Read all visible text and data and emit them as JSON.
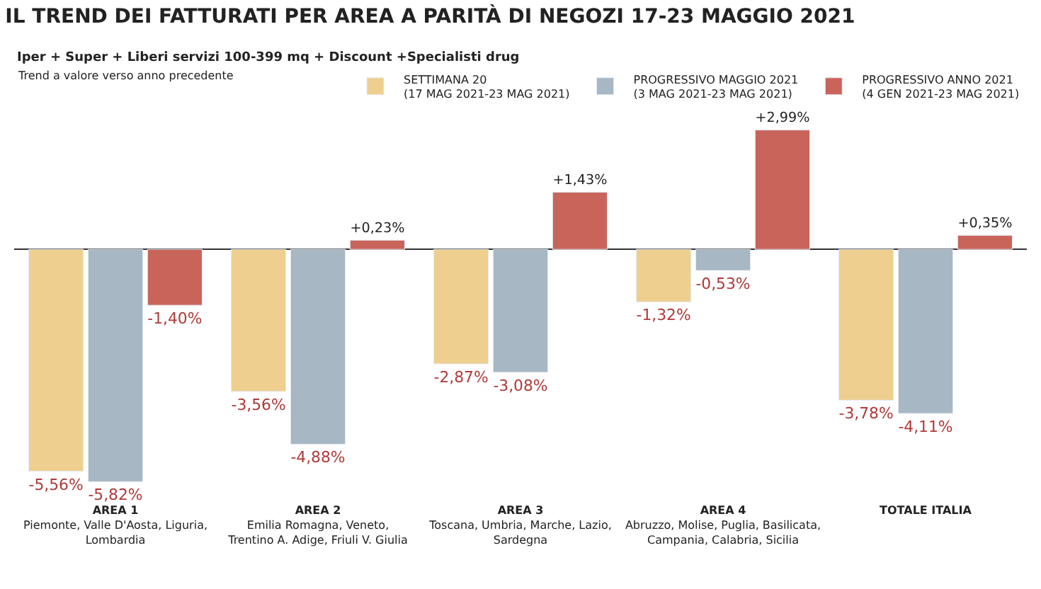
{
  "chart_data": {
    "type": "bar",
    "title": "IL TREND DEI FATTURATI PER AREA A PARITÀ DI NEGOZI 17-23 MAGGIO 2021",
    "subtitle": "Iper + Super + Liberi servizi 100-399 mq + Discount +Specialisti drug",
    "annotations": [
      "Trend a valore verso anno precedente"
    ],
    "categories": [
      "AREA 1\nPiemonte, Valle D'Aosta, Liguria,\nLombardia",
      "AREA 2\nEmilia Romagna, Veneto,\nTrentino A. Adige, Friuli V. Giulia",
      "AREA 3\nToscana, Umbria, Marche, Lazio,\nSardegna",
      "AREA 4\nAbruzzo, Molise, Puglia, Basilicata,\nCampania, Calabria, Sicilia",
      "TOTALE ITALIA"
    ],
    "series": [
      {
        "name": "SETTIMANA 20\n(17 MAG 2021-23 MAG 2021)",
        "color": "#eecf8f",
        "values": [
          -5.56,
          -3.56,
          -2.87,
          -1.32,
          -3.78
        ],
        "value_labels": [
          "-5,56%",
          "-3,56%",
          "-2,87%",
          "-1,32%",
          "-3,78%"
        ]
      },
      {
        "name": "PROGRESSIVO MAGGIO 2021\n(3 MAG 2021-23 MAG 2021)",
        "color": "#a7b7c4",
        "values": [
          -5.82,
          -4.88,
          -3.08,
          -0.53,
          -4.11
        ],
        "value_labels": [
          "-5,82%",
          "-4,88%",
          "-3,08%",
          "-0,53%",
          "-4,11%"
        ]
      },
      {
        "name": "PROGRESSIVO ANNO 2021\n(4 GEN 2021-23 MAG 2021)",
        "color": "#c9645a",
        "values": [
          -1.4,
          0.23,
          1.43,
          2.99,
          0.35
        ],
        "value_labels": [
          "-1,40%",
          "+0,23%",
          "+1,43%",
          "+2,99%",
          "+0,35%"
        ]
      }
    ],
    "legend": "top right"
  }
}
